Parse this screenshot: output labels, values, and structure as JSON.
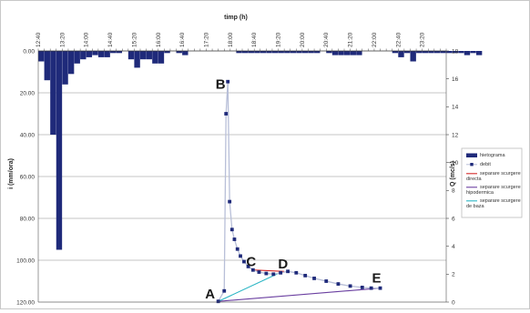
{
  "chart_data": {
    "type": "bar+line",
    "title": "timp (h)",
    "ylabel_left": "i (mm/ora)",
    "ylabel_right": "Q (mc/s)",
    "x_tick_labels": [
      "12:40",
      "13:20",
      "14:00",
      "14:40",
      "15:20",
      "16:00",
      "16:40",
      "17:20",
      "18:00",
      "18:40",
      "19:20",
      "20:00",
      "20:40",
      "21:20",
      "22:00",
      "22:40",
      "23:20"
    ],
    "y_left_ticks": [
      "0.00",
      "20.00",
      "40.00",
      "60.00",
      "80.00",
      "100.00",
      "120.00"
    ],
    "y_left_range": [
      0,
      120
    ],
    "y_left_inverted": true,
    "y_right_ticks": [
      "0",
      "2",
      "4",
      "6",
      "8",
      "10",
      "12",
      "14",
      "16",
      "18"
    ],
    "y_right_range": [
      0,
      18
    ],
    "grid": "horizontal",
    "legend_position": "right",
    "legend": [
      "hietograma",
      "debit",
      "separare scurgere directa",
      "separare scurgere hipodermica",
      "separare scurgere de baza"
    ],
    "hyetograph": {
      "name": "hietograma",
      "color": "#1f2a7a",
      "x_start_min": 760,
      "step_min": 10,
      "values": [
        5,
        14,
        40,
        95,
        16,
        11,
        6,
        4,
        3,
        2,
        3,
        3,
        1,
        1,
        0,
        4,
        8,
        4,
        4,
        6,
        6,
        1,
        0,
        1,
        2,
        0,
        0,
        0,
        0,
        0,
        0,
        0,
        0,
        1,
        1,
        1,
        1,
        1,
        1,
        1,
        1,
        1,
        1,
        1,
        1,
        1,
        1,
        0,
        1,
        2,
        2,
        2,
        2,
        2,
        0,
        0,
        0,
        0,
        0,
        1,
        3,
        1,
        5,
        1,
        1,
        1,
        1,
        1,
        1,
        1,
        1,
        2,
        1,
        2
      ]
    },
    "discharge": {
      "name": "debit",
      "color": "#1f2a7a",
      "line_color": "#b8bfd8",
      "points": [
        [
          1060,
          0.05
        ],
        [
          1070,
          0.8
        ],
        [
          1073,
          13.5
        ],
        [
          1076,
          15.8
        ],
        [
          1079,
          7.2
        ],
        [
          1083,
          5.2
        ],
        [
          1087,
          4.5
        ],
        [
          1092,
          3.8
        ],
        [
          1097,
          3.3
        ],
        [
          1103,
          2.9
        ],
        [
          1110,
          2.55
        ],
        [
          1118,
          2.3
        ],
        [
          1128,
          2.15
        ],
        [
          1140,
          2.05
        ],
        [
          1152,
          2.0
        ],
        [
          1164,
          2.1
        ],
        [
          1176,
          2.2
        ],
        [
          1190,
          2.1
        ],
        [
          1205,
          1.9
        ],
        [
          1220,
          1.7
        ],
        [
          1240,
          1.5
        ],
        [
          1260,
          1.3
        ],
        [
          1280,
          1.15
        ],
        [
          1300,
          1.05
        ],
        [
          1315,
          1.0
        ],
        [
          1330,
          1.0
        ]
      ]
    },
    "separation_lines": [
      {
        "name": "separare scurgere directa",
        "color": "#d42a2a",
        "points": [
          [
            1118,
            2.3
          ],
          [
            1170,
            2.2
          ]
        ]
      },
      {
        "name": "separare scurgere hipodermica",
        "color": "#6a3fa0",
        "points": [
          [
            1060,
            0.05
          ],
          [
            1330,
            1.0
          ]
        ]
      },
      {
        "name": "separare scurgere de baza",
        "color": "#2ab5c4",
        "points": [
          [
            1060,
            0.05
          ],
          [
            1165,
            2.15
          ]
        ]
      }
    ],
    "annotations": [
      {
        "label": "A",
        "x": 1060,
        "y": 0.05
      },
      {
        "label": "B",
        "x": 1076,
        "y": 15.8
      },
      {
        "label": "C",
        "x": 1118,
        "y": 2.3
      },
      {
        "label": "D",
        "x": 1165,
        "y": 2.15
      },
      {
        "label": "E",
        "x": 1330,
        "y": 1.0
      }
    ]
  }
}
